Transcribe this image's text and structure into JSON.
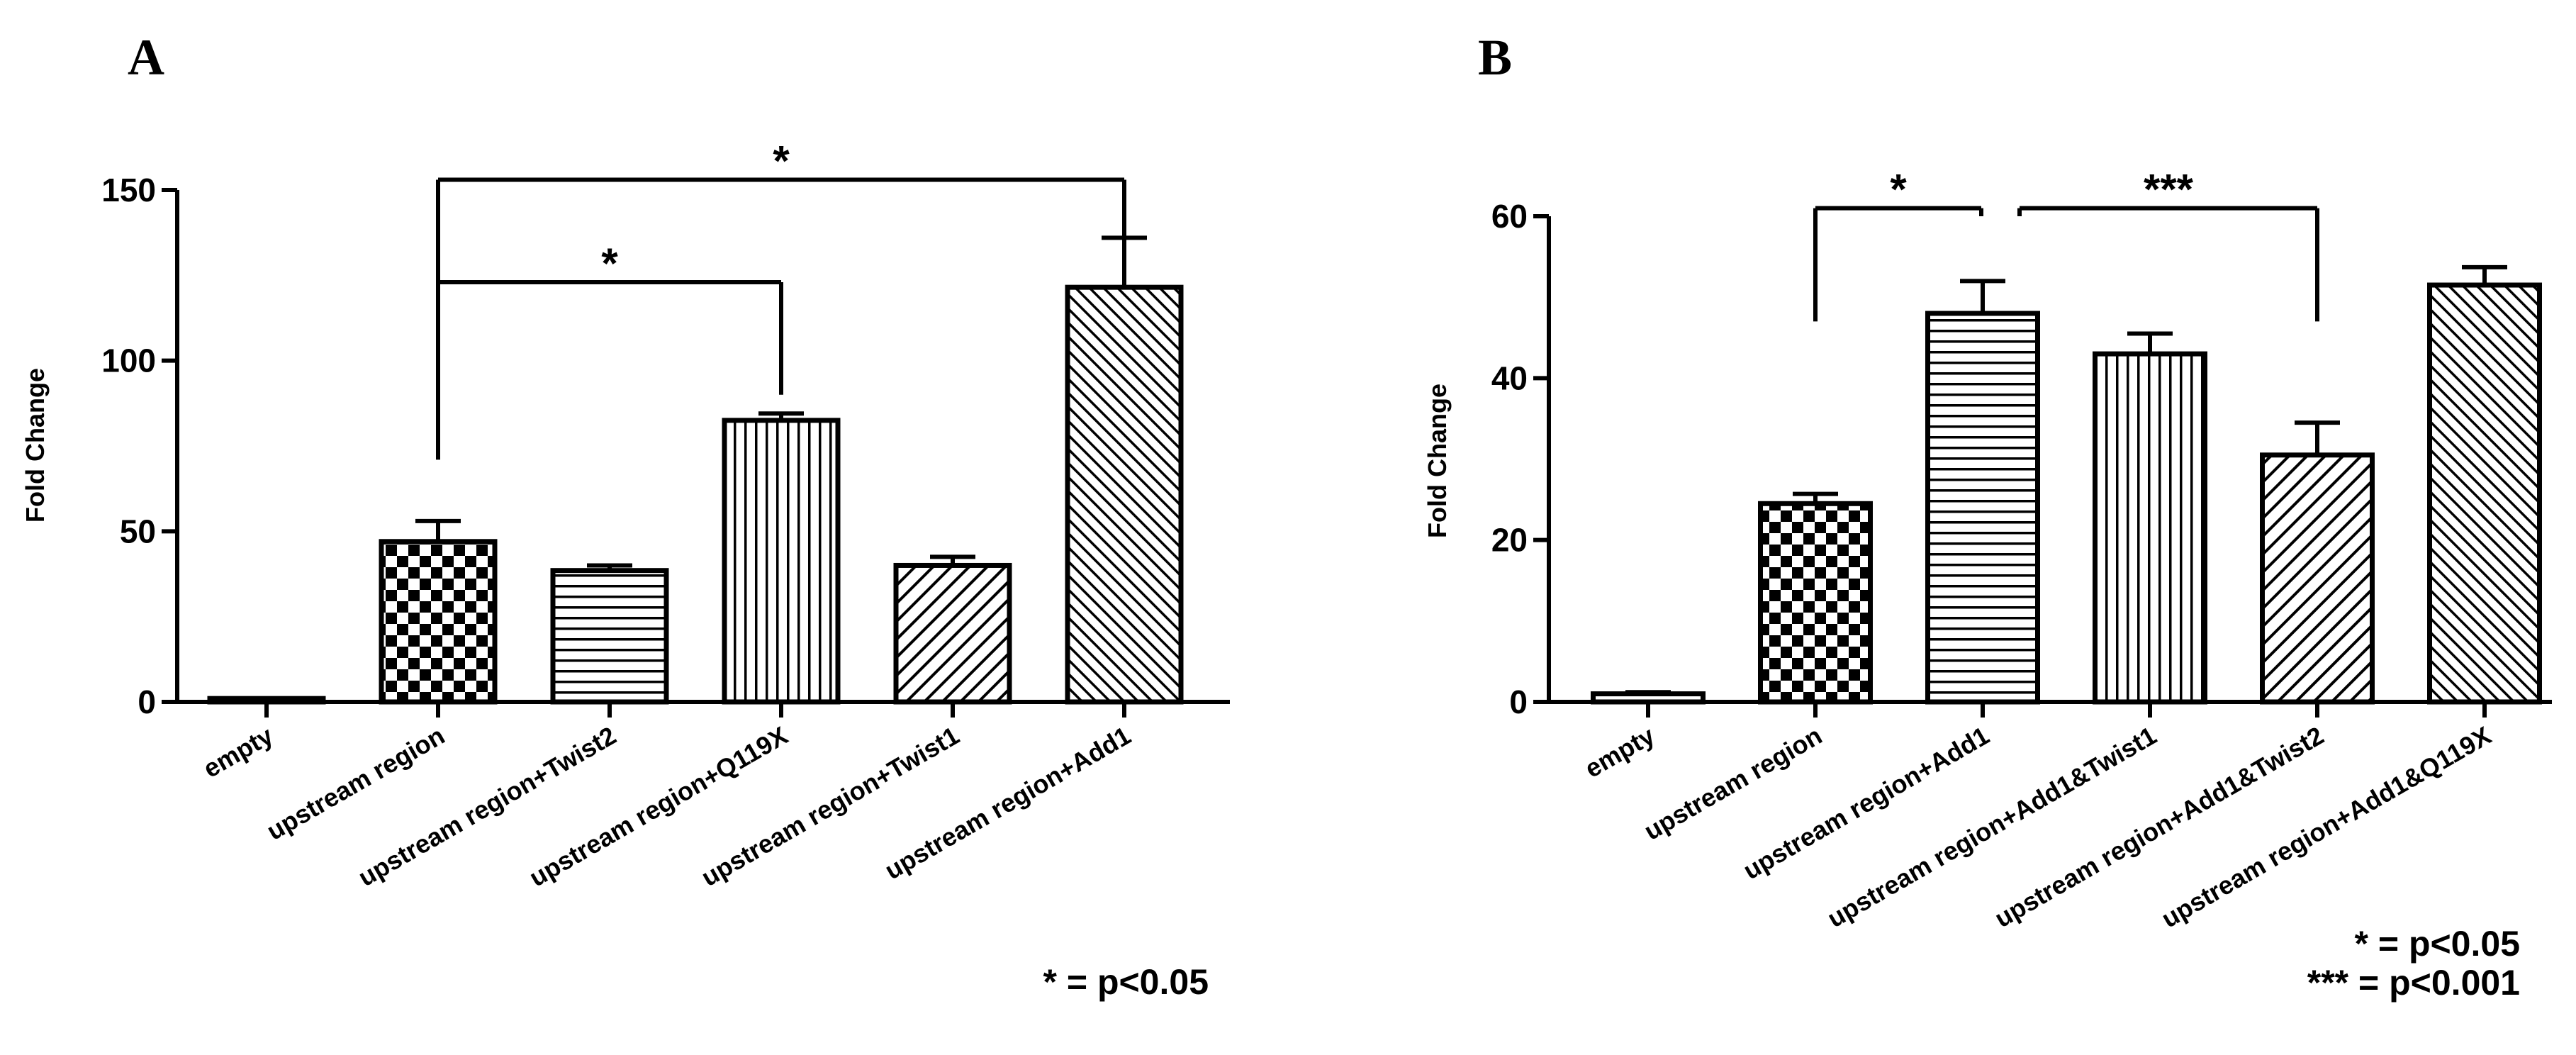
{
  "chart_data": [
    {
      "type": "bar",
      "panel_label": "A",
      "ylabel": "Fold Change",
      "xlabel": "",
      "ylim": [
        0,
        150
      ],
      "yticks": [
        "0",
        "50",
        "100",
        "150"
      ],
      "categories": [
        "empty",
        "upstream region",
        "upstream region+Twist2",
        "upstream region+Q119X",
        "upstream region+Twist1",
        "upstream region+Add1"
      ],
      "values": [
        1,
        47,
        38.5,
        82.5,
        40,
        121.5
      ],
      "errors": [
        0.3,
        6,
        1.5,
        2,
        2.5,
        14.5
      ],
      "patterns": [
        "none",
        "checker",
        "hlines",
        "vlines",
        "diag",
        "diag-fine"
      ],
      "significance": [
        {
          "from": 1,
          "to": 5,
          "label": "*",
          "y": 153,
          "drop_from": 71,
          "drop_to": 136.5
        },
        {
          "from": 1,
          "to": 3,
          "label": "*",
          "y": 123,
          "drop_from": 71,
          "drop_to": 90
        }
      ],
      "legend_note": [
        "* = p<0.05"
      ]
    },
    {
      "type": "bar",
      "panel_label": "B",
      "ylabel": "Fold Change",
      "xlabel": "",
      "ylim": [
        0,
        60
      ],
      "yticks": [
        "0",
        "20",
        "40",
        "60"
      ],
      "categories": [
        "empty",
        "upstream region",
        "upstream region+Add1",
        "upstream region+Add1&Twist1",
        "upstream region+Add1&Twist2",
        "upstream region+Add1&Q119X"
      ],
      "values": [
        1,
        24.5,
        48,
        43,
        30.5,
        51.5
      ],
      "errors": [
        0.2,
        1.2,
        4,
        2.5,
        4,
        2.2
      ],
      "patterns": [
        "none",
        "checker",
        "hlines",
        "vlines",
        "diag",
        "diag-fine"
      ],
      "significance": [
        {
          "from": 1,
          "to": 2,
          "label": "*",
          "y": 61,
          "drop_from": 47,
          "drop_to": 60
        },
        {
          "from": 2,
          "to": 4,
          "label": "***",
          "y": 61,
          "drop_from": 60,
          "drop_to": 47
        }
      ],
      "legend_note": [
        "* = p<0.05",
        "*** = p<0.001"
      ]
    }
  ]
}
